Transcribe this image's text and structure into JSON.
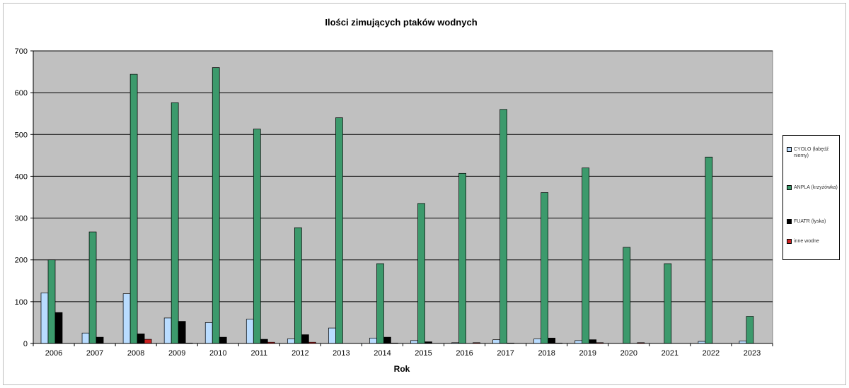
{
  "chart_data": {
    "type": "bar",
    "title": "Ilości zimujących ptaków wodnych",
    "xlabel": "Rok",
    "ylabel": "",
    "ylim": [
      0,
      700
    ],
    "yticks": [
      0,
      100,
      200,
      300,
      400,
      500,
      600,
      700
    ],
    "grid": true,
    "legend_position": "right",
    "categories": [
      "2006",
      "2007",
      "2008",
      "2009",
      "2010",
      "2011",
      "2012",
      "2013",
      "2014",
      "2015",
      "2016",
      "2017",
      "2018",
      "2019",
      "2020",
      "2021",
      "2022",
      "2023"
    ],
    "series": [
      {
        "name": "CYOLO (łabędź niemy)",
        "color": "#b9dcff",
        "values": [
          121,
          25,
          119,
          61,
          50,
          58,
          11,
          37,
          13,
          7,
          2,
          9,
          11,
          7,
          0,
          0,
          5,
          6
        ]
      },
      {
        "name": "ANPLA (krzyżówka)",
        "color": "#3c9a6c",
        "values": [
          200,
          267,
          644,
          576,
          660,
          513,
          277,
          540,
          191,
          335,
          407,
          560,
          361,
          420,
          230,
          191,
          446,
          65
        ]
      },
      {
        "name": "FUATR (łyska)",
        "color": "#000000",
        "values": [
          74,
          15,
          23,
          53,
          15,
          10,
          21,
          0,
          15,
          4,
          0,
          1,
          13,
          9,
          0,
          0,
          0,
          0
        ]
      },
      {
        "name": "inne wodne",
        "color": "#cc2222",
        "values": [
          0,
          0,
          10,
          1,
          0,
          3,
          3,
          0,
          1,
          0,
          2,
          0,
          1,
          2,
          2,
          0,
          0,
          0
        ]
      }
    ]
  }
}
